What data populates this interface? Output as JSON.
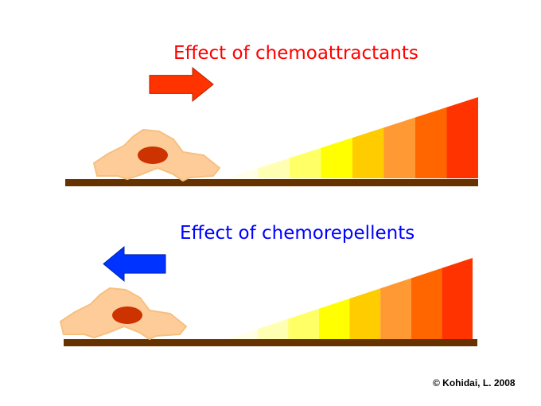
{
  "panels": [
    {
      "title": "Effect of chemoattractants",
      "title_color": "#ff0000",
      "arrow_direction": "right",
      "arrow_color": "#ff3300"
    },
    {
      "title": "Effect of chemorepellents",
      "title_color": "#0000ff",
      "arrow_direction": "left",
      "arrow_color": "#0033ff"
    }
  ],
  "gradient_colors": [
    "#ffffe6",
    "#ffffb3",
    "#ffff66",
    "#ffff00",
    "#ffcc00",
    "#ff9933",
    "#ff6600",
    "#ff3300"
  ],
  "cell_color": "#fdcc99",
  "nucleus_color": "#cc3300",
  "substrate_color": "#663300",
  "copyright": "© Kohidai, L. 2008"
}
